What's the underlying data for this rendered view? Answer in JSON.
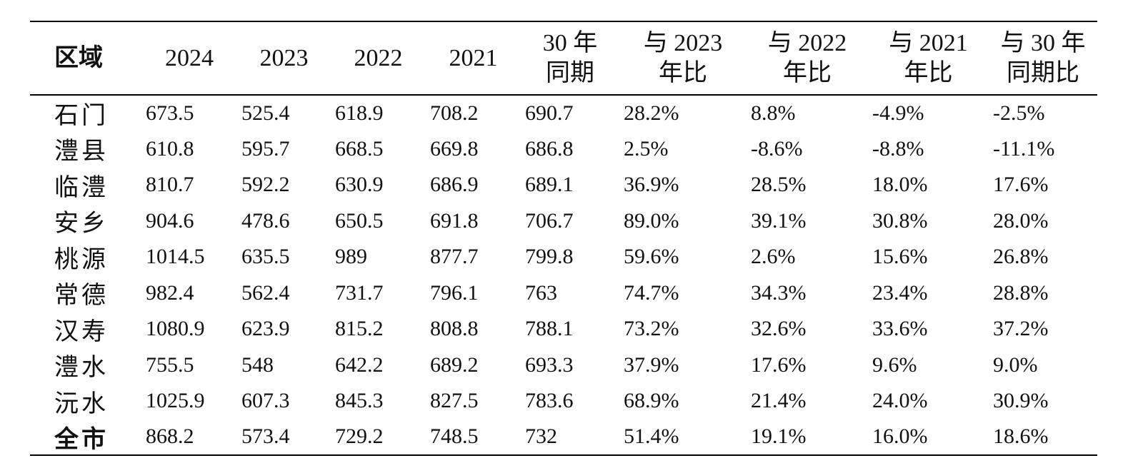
{
  "table": {
    "headers": [
      [
        "区域"
      ],
      [
        "2024"
      ],
      [
        "2023"
      ],
      [
        "2022"
      ],
      [
        "2021"
      ],
      [
        "30 年",
        "同期"
      ],
      [
        "与 2023",
        "年比"
      ],
      [
        "与 2022",
        "年比"
      ],
      [
        "与 2021",
        "年比"
      ],
      [
        "与 30 年",
        "同期比"
      ]
    ],
    "rows": [
      [
        "石门",
        "673.5",
        "525.4",
        "618.9",
        "708.2",
        "690.7",
        "28.2%",
        "8.8%",
        "-4.9%",
        "-2.5%"
      ],
      [
        "澧县",
        "610.8",
        "595.7",
        "668.5",
        "669.8",
        "686.8",
        "2.5%",
        "-8.6%",
        "-8.8%",
        "-11.1%"
      ],
      [
        "临澧",
        "810.7",
        "592.2",
        "630.9",
        "686.9",
        "689.1",
        "36.9%",
        "28.5%",
        "18.0%",
        "17.6%"
      ],
      [
        "安乡",
        "904.6",
        "478.6",
        "650.5",
        "691.8",
        "706.7",
        "89.0%",
        "39.1%",
        "30.8%",
        "28.0%"
      ],
      [
        "桃源",
        "1014.5",
        "635.5",
        "989",
        "877.7",
        "799.8",
        "59.6%",
        "2.6%",
        "15.6%",
        "26.8%"
      ],
      [
        "常德",
        "982.4",
        "562.4",
        "731.7",
        "796.1",
        "763",
        "74.7%",
        "34.3%",
        "23.4%",
        "28.8%"
      ],
      [
        "汉寿",
        "1080.9",
        "623.9",
        "815.2",
        "808.8",
        "788.1",
        "73.2%",
        "32.6%",
        "33.6%",
        "37.2%"
      ],
      [
        "澧水",
        "755.5",
        "548",
        "642.2",
        "689.2",
        "693.3",
        "37.9%",
        "17.6%",
        "9.6%",
        "9.0%"
      ],
      [
        "沅水",
        "1025.9",
        "607.3",
        "845.3",
        "827.5",
        "783.6",
        "68.9%",
        "21.4%",
        "24.0%",
        "30.9%"
      ],
      [
        "全市",
        "868.2",
        "573.4",
        "729.2",
        "748.5",
        "732",
        "51.4%",
        "19.1%",
        "16.0%",
        "18.6%"
      ]
    ]
  }
}
